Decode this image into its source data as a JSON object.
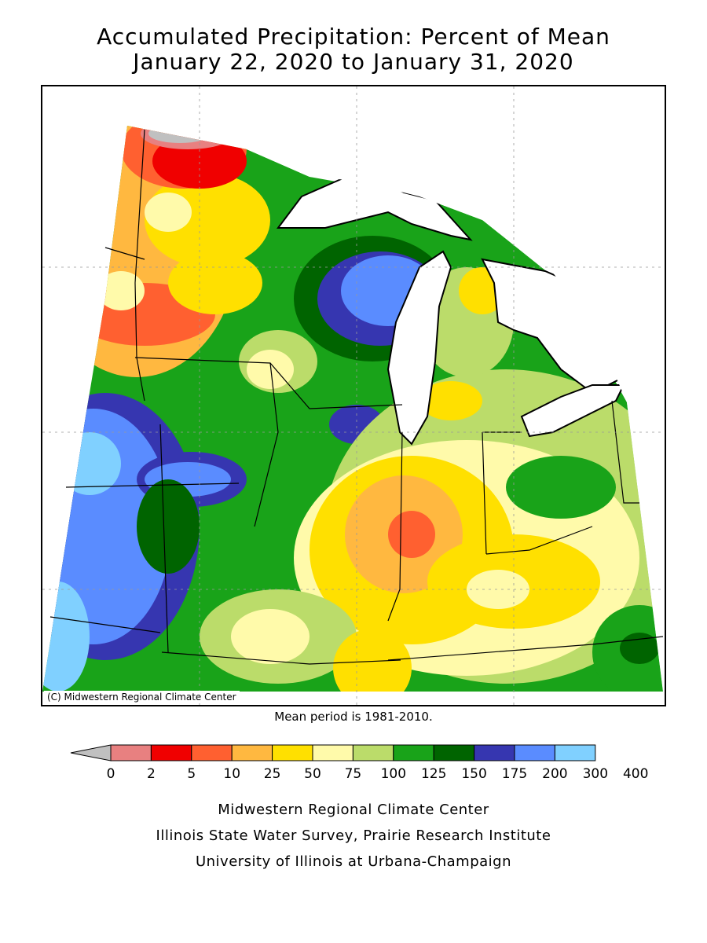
{
  "header": {
    "title_line1": "Accumulated Precipitation: Percent of Mean",
    "title_line2": "January 22, 2020 to January 31, 2020"
  },
  "map": {
    "copyright": "(C) Midwestern Regional Climate Center",
    "mean_note": "Mean period is 1981-2010."
  },
  "legend": {
    "tick_labels": [
      "0",
      "2",
      "5",
      "10",
      "25",
      "50",
      "75",
      "100",
      "125",
      "150",
      "175",
      "200",
      "300",
      "400"
    ],
    "colors": [
      "#c0c0c0",
      "#e88080",
      "#f00000",
      "#ff6030",
      "#ffb840",
      "#ffe000",
      "#fffaaa",
      "#bbdc6a",
      "#19a319",
      "#006400",
      "#3636b0",
      "#5a8cff",
      "#80d0ff"
    ]
  },
  "footer": {
    "line1": "Midwestern Regional Climate Center",
    "line2": "Illinois State Water Survey, Prairie Research Institute",
    "line3": "University of Illinois at Urbana-Champaign"
  }
}
